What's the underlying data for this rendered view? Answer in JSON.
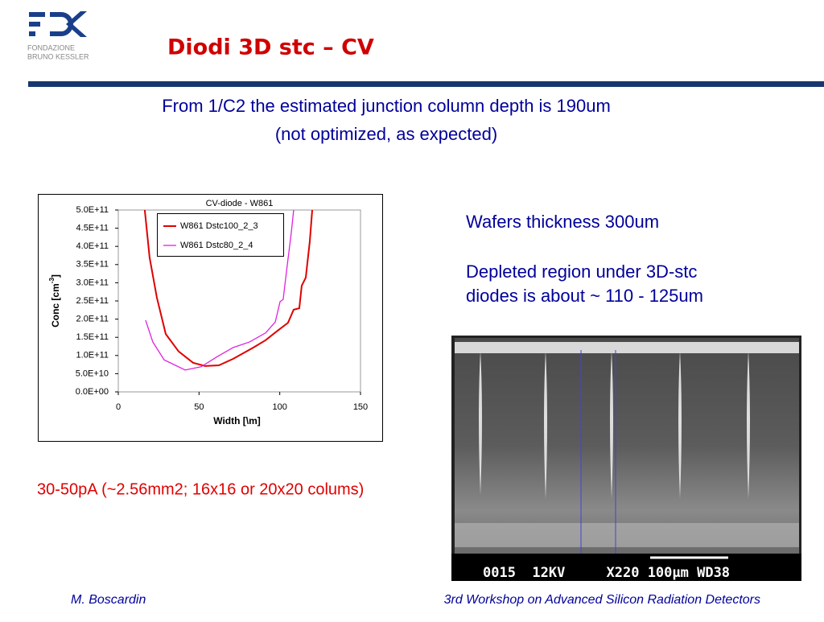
{
  "logo": {
    "line1": "FONDAZIONE",
    "line2": "BRUNO KESSLER"
  },
  "title": "Diodi 3D stc – CV",
  "subtitle": [
    "From 1/C2 the estimated junction column depth is 190um",
    "(not optimized, as expected)"
  ],
  "notes": {
    "wafer": "Wafers thickness 300um",
    "depleted": [
      "Depleted region under 3D-stc",
      "diodes is about ~ 110  - 125um"
    ]
  },
  "current_note": "30-50pA (~2.56mm2; 16x16 or 20x20 colums)",
  "photo_caption": "0015  12KV     X220 100µm WD38",
  "footer": {
    "author": "M. Boscardin",
    "event": "3rd Workshop on Advanced Silicon Radiation Detectors"
  },
  "chart_data": {
    "type": "line",
    "title": "CV-diode - W861",
    "x_label": "Width [\\m]",
    "y_label": [
      "Conc [cm",
      "-3",
      "]"
    ],
    "xlim": [
      0,
      150
    ],
    "xticks": [
      0,
      50,
      100,
      150
    ],
    "ylim": [
      0,
      500000000000
    ],
    "yticks": [
      {
        "value": 0,
        "label": "0.0E+00"
      },
      {
        "value": 50000000000,
        "label": "5.0E+10"
      },
      {
        "value": 100000000000,
        "label": "1.0E+11"
      },
      {
        "value": 150000000000,
        "label": "1.5E+11"
      },
      {
        "value": 200000000000,
        "label": "2.0E+11"
      },
      {
        "value": 250000000000,
        "label": "2.5E+11"
      },
      {
        "value": 300000000000,
        "label": "3.0E+11"
      },
      {
        "value": 350000000000,
        "label": "3.5E+11"
      },
      {
        "value": 400000000000,
        "label": "4.0E+11"
      },
      {
        "value": 450000000000,
        "label": "4.5E+11"
      },
      {
        "value": 500000000000,
        "label": "5.0E+11"
      }
    ],
    "grid": false,
    "series": [
      {
        "name": "W861 Dstc100_2_3",
        "color": "#e00000",
        "x": [
          16.4,
          19.4,
          23.9,
          29.4,
          37.4,
          46.3,
          53.8,
          62.3,
          71.2,
          83.7,
          91.2,
          98.6,
          105.1,
          108.6,
          112.1,
          113.6,
          116.1,
          118.6,
          120.1
        ],
        "values": [
          500000000000,
          369000000000,
          259000000000,
          159000000000,
          111000000000,
          80000000000,
          71000000000,
          73000000000,
          91000000000,
          122000000000,
          142000000000,
          168000000000,
          190000000000,
          226000000000,
          230000000000,
          292000000000,
          314000000000,
          414000000000,
          500000000000
        ]
      },
      {
        "name": "W861 Dstc80_2_4",
        "color": "#e020e0",
        "x": [
          16.9,
          21.4,
          28.4,
          41.4,
          51.3,
          61.3,
          71.2,
          81.2,
          91.2,
          97.2,
          100.2,
          102.1,
          104.6,
          107.1,
          108.6
        ],
        "values": [
          197000000000,
          137000000000,
          88000000000,
          60000000000,
          69000000000,
          97000000000,
          122000000000,
          137000000000,
          162000000000,
          192000000000,
          248000000000,
          254000000000,
          347000000000,
          436000000000,
          500000000000
        ]
      }
    ]
  }
}
